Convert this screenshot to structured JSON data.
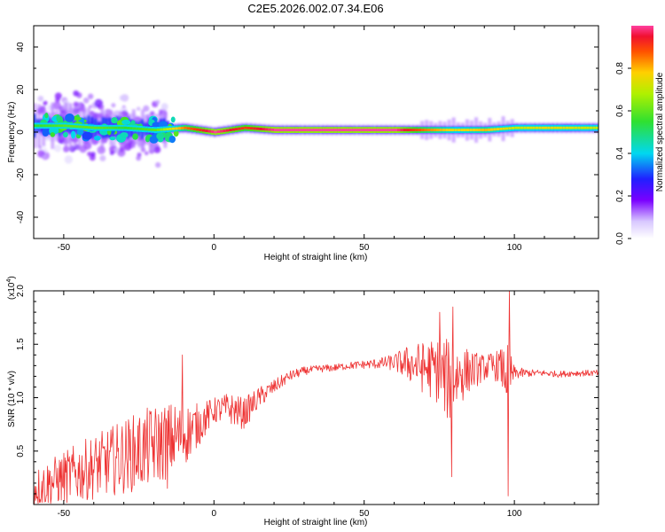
{
  "title": "C2E5.2026.002.07.34.E06",
  "colors": {
    "snr_line": "#ee3333",
    "band_core": "#d0103a",
    "colormap": [
      "#ffffff",
      "#e0d0ff",
      "#b070ff",
      "#6a00ff",
      "#2030ff",
      "#00d0e0",
      "#30e040",
      "#a0f000",
      "#ffd000",
      "#ff6000",
      "#f01030",
      "#ff40a0"
    ]
  },
  "chart_data": [
    {
      "type": "heatmap",
      "name": "spectrogram",
      "xlabel": "Height of straight line (km)",
      "ylabel": "Frequency (Hz)",
      "xlim": [
        -60,
        128
      ],
      "ylim": [
        -50,
        50
      ],
      "xticks": [
        -50,
        0,
        50,
        100
      ],
      "xtick_labels": [
        "-50",
        "0",
        "50",
        "100"
      ],
      "yticks": [
        -40,
        -20,
        0,
        20,
        40
      ],
      "ytick_labels": [
        "-40",
        "-20",
        "0",
        "20",
        "40"
      ],
      "colorbar": {
        "label": "Normalized spectral amplitude",
        "range": [
          0.0,
          1.0
        ],
        "ticks": [
          0.0,
          0.2,
          0.4,
          0.6,
          0.8
        ],
        "tick_labels": [
          "0.0",
          "0.2",
          "0.4",
          "0.6",
          "0.8"
        ]
      },
      "ridge": {
        "x": [
          -60,
          -50,
          -40,
          -30,
          -20,
          -10,
          0,
          10,
          20,
          30,
          40,
          50,
          60,
          70,
          80,
          90,
          100,
          110,
          128
        ],
        "center_hz": [
          3,
          3,
          2,
          2,
          1,
          2,
          0,
          2,
          1,
          1,
          1,
          1,
          1,
          1,
          1,
          1,
          2,
          2,
          2
        ],
        "peak_amplitude": [
          0.55,
          0.6,
          0.6,
          0.55,
          0.6,
          0.85,
          1.0,
          0.9,
          1.0,
          1.0,
          1.0,
          1.0,
          1.0,
          0.85,
          0.75,
          0.8,
          0.7,
          0.75,
          0.7
        ]
      }
    },
    {
      "type": "line",
      "name": "snr",
      "xlabel": "Height of straight line (km)",
      "ylabel": "SNR (10 * v/v)",
      "y_multiplier_label": "(x10",
      "y_multiplier_exp": "4",
      "y_multiplier_close": ")",
      "xlim": [
        -60,
        128
      ],
      "ylim": [
        0,
        20000
      ],
      "xticks": [
        -50,
        0,
        50,
        100
      ],
      "xtick_labels": [
        "-50",
        "0",
        "50",
        "100"
      ],
      "yticks": [
        5000,
        10000,
        15000,
        20000
      ],
      "ytick_labels": [
        "0.5",
        "1.0",
        "1.5",
        "2.0"
      ],
      "x": [
        -60,
        -55,
        -50,
        -45,
        -40,
        -35,
        -30,
        -25,
        -20,
        -15,
        -10,
        -5,
        0,
        5,
        10,
        15,
        20,
        25,
        30,
        35,
        40,
        45,
        50,
        55,
        60,
        65,
        70,
        75,
        78,
        80,
        85,
        90,
        95,
        98,
        100,
        105,
        110,
        115,
        120,
        125,
        128
      ],
      "y": [
        1500,
        2000,
        2500,
        3000,
        3500,
        4000,
        4500,
        5000,
        5500,
        6000,
        6500,
        7500,
        8800,
        9000,
        8500,
        10000,
        11000,
        12000,
        12500,
        12700,
        12800,
        13000,
        13100,
        13200,
        13300,
        13200,
        12800,
        12500,
        11500,
        12000,
        12500,
        12800,
        13000,
        12000,
        12300,
        12300,
        12300,
        12200,
        12300,
        12300,
        12300
      ],
      "noise_amplitude": [
        1800,
        2200,
        2500,
        2800,
        3000,
        3200,
        3500,
        3700,
        3800,
        3600,
        3000,
        2000,
        1200,
        1500,
        1500,
        1000,
        700,
        500,
        400,
        350,
        350,
        350,
        400,
        500,
        800,
        1800,
        2500,
        3200,
        4000,
        3500,
        2000,
        1200,
        1500,
        3000,
        600,
        350,
        300,
        300,
        300,
        300,
        300
      ],
      "spikes": [
        {
          "x": 79.2,
          "y": 2600
        },
        {
          "x": 79.6,
          "y": 18500
        },
        {
          "x": 98.0,
          "y": 800
        },
        {
          "x": 98.4,
          "y": 20000
        },
        {
          "x": 75.2,
          "y": 18000
        },
        {
          "x": -10.5,
          "y": 14000
        },
        {
          "x": -15.5,
          "y": 1500
        }
      ]
    }
  ]
}
